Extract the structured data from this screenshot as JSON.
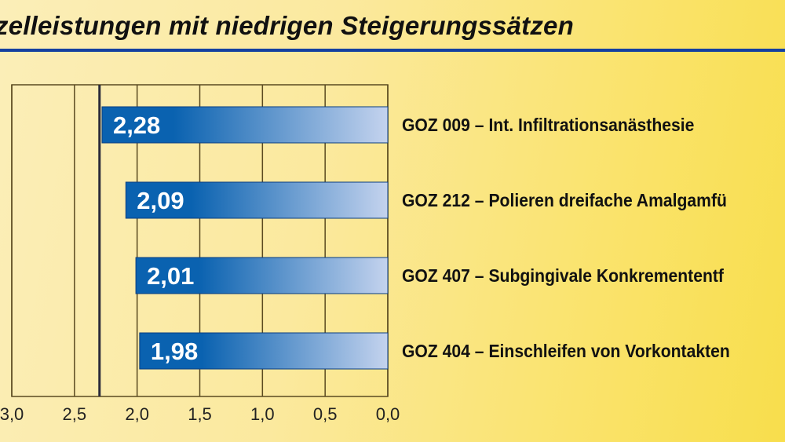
{
  "chart_data": {
    "type": "bar",
    "orientation": "horizontal",
    "title": "zelleistungen mit niedrigen Steigerungssätzen",
    "categories": [
      "GOZ 009 – Int. Infiltrationsanästhesie",
      "GOZ 212 – Polieren dreifache Amalgamfü",
      "GOZ 407 – Subgingivale Konkremententf",
      "GOZ 404 – Einschleifen von Vorkontakten"
    ],
    "values": [
      2.28,
      2.09,
      2.01,
      1.98
    ],
    "value_labels": [
      "2,28",
      "2,09",
      "2,01",
      "1,98"
    ],
    "xlim": [
      0,
      3.0
    ],
    "x_reversed": true,
    "xticks": [
      3.0,
      2.5,
      2.0,
      1.5,
      1.0,
      0.5,
      0.0
    ],
    "xtick_labels": [
      "3,0",
      "2,5",
      "2,0",
      "1,5",
      "1,0",
      "0,5",
      "0,0"
    ],
    "reference_line": 2.3,
    "grid": true,
    "xlabel": "",
    "ylabel": "",
    "colors": {
      "bar_dark": "#0a62b0",
      "bar_light": "#c4d3ee",
      "rule": "#1440a0"
    }
  }
}
